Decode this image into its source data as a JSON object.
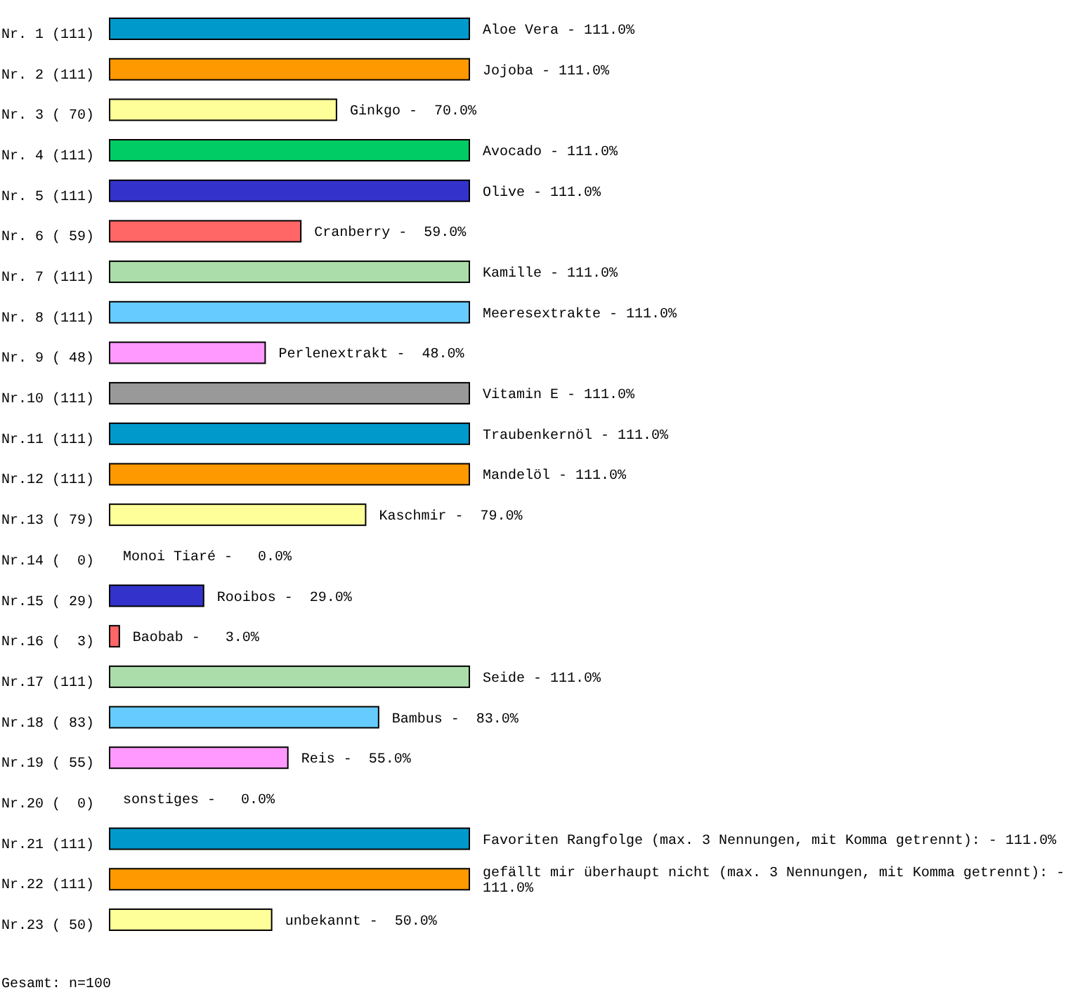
{
  "chart_data": {
    "type": "bar",
    "orientation": "horizontal",
    "categories": [
      "Nr. 1 (111)",
      "Nr. 2 (111)",
      "Nr. 3 ( 70)",
      "Nr. 4 (111)",
      "Nr. 5 (111)",
      "Nr. 6 ( 59)",
      "Nr. 7 (111)",
      "Nr. 8 (111)",
      "Nr. 9 ( 48)",
      "Nr.10 (111)",
      "Nr.11 (111)",
      "Nr.12 (111)",
      "Nr.13 ( 79)",
      "Nr.14 (  0)",
      "Nr.15 ( 29)",
      "Nr.16 (  3)",
      "Nr.17 (111)",
      "Nr.18 ( 83)",
      "Nr.19 ( 55)",
      "Nr.20 (  0)",
      "Nr.21 (111)",
      "Nr.22 (111)",
      "Nr.23 ( 50)"
    ],
    "values": [
      111,
      111,
      70,
      111,
      111,
      59,
      111,
      111,
      48,
      111,
      111,
      111,
      79,
      0,
      29,
      3,
      111,
      83,
      55,
      0,
      111,
      111,
      50
    ],
    "value_labels": [
      "Aloe Vera ‐ 111.0%",
      "Jojoba ‐ 111.0%",
      "Ginkgo ‐  70.0%",
      "Avocado ‐ 111.0%",
      "Olive ‐ 111.0%",
      "Cranberry ‐  59.0%",
      "Kamille ‐ 111.0%",
      "Meeresextrakte ‐ 111.0%",
      "Perlenextrakt ‐  48.0%",
      "Vitamin E ‐ 111.0%",
      "Traubenkernöl ‐ 111.0%",
      "Mandelöl ‐ 111.0%",
      "Kaschmir ‐  79.0%",
      "Monoi Tiaré ‐   0.0%",
      "Rooibos ‐  29.0%",
      "Baobab ‐   3.0%",
      "Seide ‐ 111.0%",
      "Bambus ‐  83.0%",
      "Reis ‐  55.0%",
      "sonstiges ‐   0.0%",
      "Favoriten Rangfolge (max. 3 Nennungen, mit Komma getrennt): ‐ 111.0%",
      "gefällt mir überhaupt nicht (max. 3 Nennungen, mit Komma getrennt): ‐ 111.0%",
      "unbekannt ‐  50.0%"
    ],
    "colors": [
      "#0099cc",
      "#ff9900",
      "#ffff99",
      "#00cc66",
      "#3333cc",
      "#ff6666",
      "#aaddaa",
      "#66ccff",
      "#ff99ff",
      "#999999",
      "#0099cc",
      "#ff9900",
      "#ffff99",
      "#00cc66",
      "#3333cc",
      "#ff6666",
      "#aaddaa",
      "#66ccff",
      "#ff99ff",
      "#999999",
      "#0099cc",
      "#ff9900",
      "#ffff99"
    ],
    "annotations": [
      "Gesamt: n=100"
    ]
  }
}
